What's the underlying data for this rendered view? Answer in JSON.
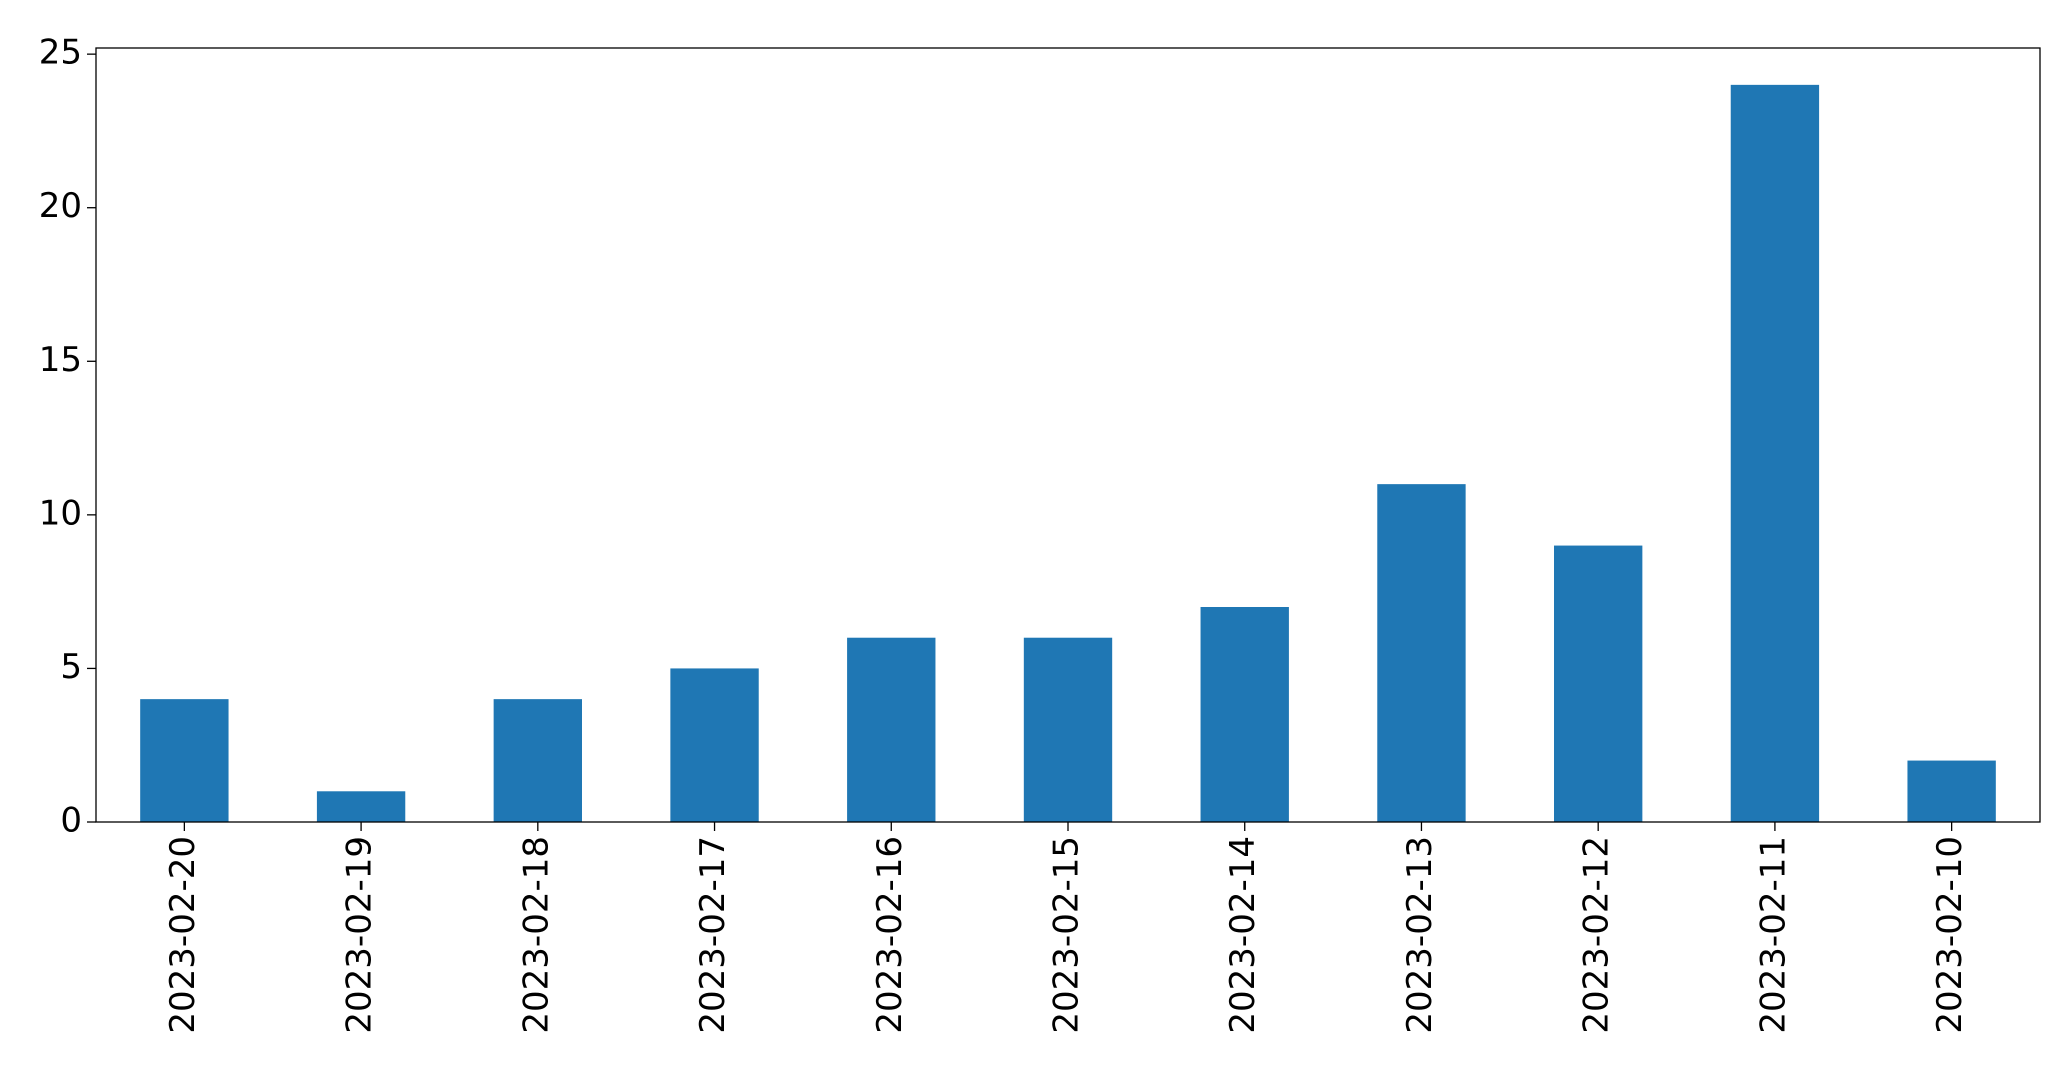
{
  "chart_data": {
    "type": "bar",
    "categories": [
      "2023-02-20",
      "2023-02-19",
      "2023-02-18",
      "2023-02-17",
      "2023-02-16",
      "2023-02-15",
      "2023-02-14",
      "2023-02-13",
      "2023-02-12",
      "2023-02-11",
      "2023-02-10"
    ],
    "values": [
      4,
      1,
      4,
      5,
      6,
      6,
      7,
      11,
      9,
      24,
      2
    ],
    "color": "#1f77b4",
    "ylim": [
      0,
      25.2
    ],
    "yticks": [
      0,
      5,
      10,
      15,
      20,
      25
    ],
    "grid": false
  }
}
